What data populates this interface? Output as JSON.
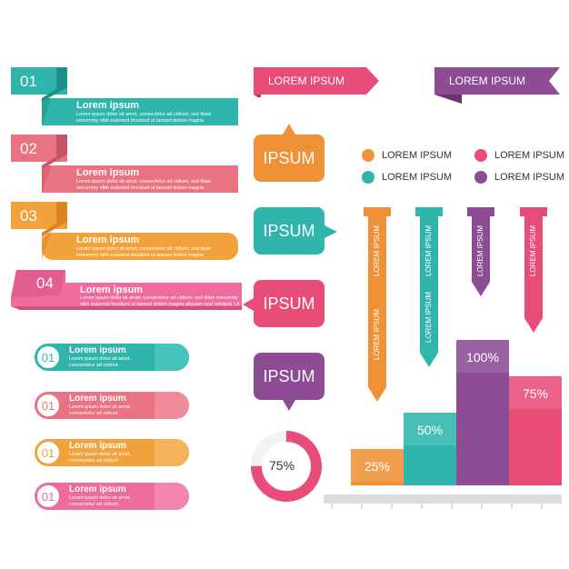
{
  "ribbons": [
    {
      "num": "01",
      "title": "Lorem ipsum",
      "body": "Lorem ipsum dolor sit amet, consectetur ad cidiunt, sed diam nonummy nibh euismod tincidunt ut laoreet dolore magna aliquam erat volutpat. Ut wisi enim ad minim veniam, quis nostrud",
      "color": "#2fb5ac",
      "dark": "#1e8f88"
    },
    {
      "num": "02",
      "title": "Lorem ipsum",
      "body": "Lorem ipsum dolor sit amet, consectetur ad cidiunt, sed diam nonummy nibh euismod tincidunt ut laoreet dolore magna aliquam erat volutpat. Ut wisi enim ad minim veniam, quis nostrud",
      "color": "#ea7382",
      "dark": "#c85565"
    },
    {
      "num": "03",
      "title": "Lorem ipsum",
      "body": "Lorem ipsum dolor sit amet, consectetur ad cidiunt, sed diam nonummy nibh euismod tincidunt ut laoreet dolore magna aliquam erat volutpat. Ut wisi enim ad minim veniam, quis nostrud",
      "color": "#f2a23b",
      "dark": "#d88522"
    },
    {
      "num": "04",
      "title": "Lorem ipsum",
      "body": "Lorem ipsum dolor sit amet, consectetur ad cidiunt, sed diam nonummy nibh euismod tincidunt ut laoreet dolore magna aliquam erat volutpat. Ut wisi enim ad minim veniam, quis nostrud",
      "color": "#ef6a9d",
      "dark": "#d44e82"
    }
  ],
  "pills": [
    {
      "num": "01",
      "title": "Lorem ipsum",
      "body": "Lorem ipsum dolor sit amet, consectetur ad cidiunt.",
      "color": "#2fb5ac",
      "light": "#46c3bb"
    },
    {
      "num": "01",
      "title": "Lorem ipsum",
      "body": "Lorem ipsum dolor sit amet, consectetur ad cidiunt.",
      "color": "#ea7382",
      "light": "#f08c99"
    },
    {
      "num": "01",
      "title": "Lorem ipsum",
      "body": "Lorem ipsum dolor sit amet, consectetur ad cidiunt.",
      "color": "#f2a23b",
      "light": "#f6b35c"
    },
    {
      "num": "01",
      "title": "Lorem ipsum",
      "body": "Lorem ipsum dolor sit amet, consectetur ad cidiunt.",
      "color": "#ef6a9d",
      "light": "#f386b0"
    }
  ],
  "banners": [
    {
      "label": "LOREM IPSUM",
      "color": "#e84d7a"
    },
    {
      "label": "LOREM IPSUM",
      "color": "#8d4c93"
    }
  ],
  "bubbles": [
    {
      "label": "IPSUM",
      "color": "#ef9137"
    },
    {
      "label": "IPSUM",
      "color": "#2fb5ac"
    },
    {
      "label": "IPSUM",
      "color": "#e84d7a"
    },
    {
      "label": "IPSUM",
      "color": "#8d4c93"
    }
  ],
  "legend": [
    {
      "label": "LOREM IPSUM",
      "color": "#ef9137"
    },
    {
      "label": "LOREM IPSUM",
      "color": "#e84d7a"
    },
    {
      "label": "LOREM IPSUM",
      "color": "#2fb5ac"
    },
    {
      "label": "LOREM IPSUM",
      "color": "#8d4c93"
    }
  ],
  "arrows": [
    {
      "labels": [
        "LOREM IPSUM",
        "LOREM IPSUM"
      ],
      "color": "#ef9137"
    },
    {
      "labels": [
        "LOREM IPSUM",
        "LOREM IPSUM"
      ],
      "color": "#2fb5ac"
    },
    {
      "labels": [
        "LOREM IPSUM"
      ],
      "color": "#8d4c93"
    },
    {
      "labels": [
        "LOREM IPSUM"
      ],
      "color": "#e84d7a"
    }
  ],
  "donut": {
    "label": "75%",
    "value": 75,
    "color": "#e84d7a"
  },
  "chart_data": {
    "type": "bar",
    "categories": [
      "",
      "",
      "",
      ""
    ],
    "values": [
      25,
      50,
      100,
      75
    ],
    "labels": [
      "25%",
      "50%",
      "100%",
      "75%"
    ],
    "colors": [
      "#ef9137",
      "#2fb5ac",
      "#8d4c93",
      "#e84d7a"
    ],
    "ylim": [
      0,
      100
    ]
  }
}
